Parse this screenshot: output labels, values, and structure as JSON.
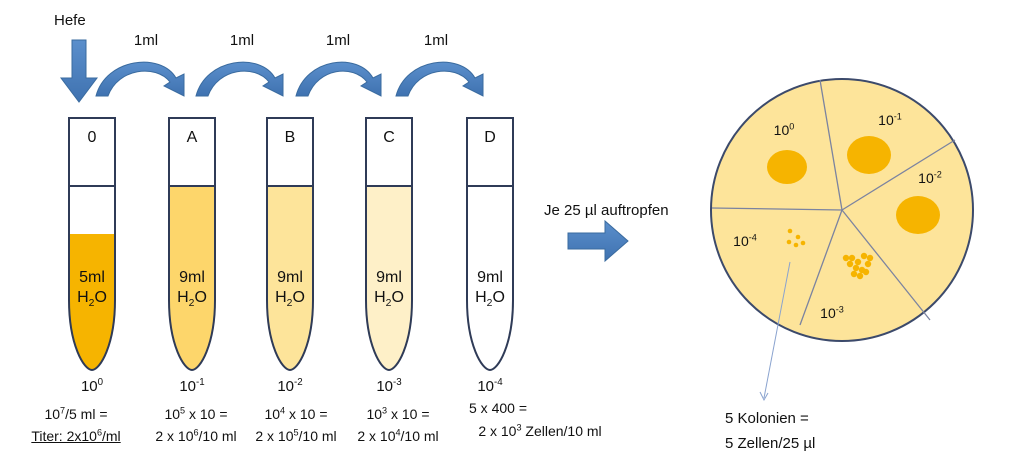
{
  "hefe_label": "Hefe",
  "transfer_volume": "1ml",
  "drop_text": "Je 25 µl auftropfen",
  "tubes": [
    {
      "letter": "0",
      "vol": "5ml",
      "solvent": "H",
      "solvent_sub": "2",
      "solvent_tail": "O",
      "dil_base": "10",
      "dil_exp": "0",
      "fill": "#f6b400",
      "calc1": [
        {
          "t": "10"
        },
        {
          "s": "7"
        },
        {
          "t": "/5 ml ="
        }
      ],
      "calc2": [
        {
          "t": "Titer: 2x10"
        },
        {
          "s": "6"
        },
        {
          "t": "/ml"
        }
      ],
      "calc2_underline": true
    },
    {
      "letter": "A",
      "vol": "9ml",
      "solvent": "H",
      "solvent_sub": "2",
      "solvent_tail": "O",
      "dil_base": "10",
      "dil_exp": "-1",
      "fill": "#fdd66b",
      "calc1": [
        {
          "t": "10"
        },
        {
          "s": "5"
        },
        {
          "t": " x 10 ="
        }
      ],
      "calc2": [
        {
          "t": "2 x 10"
        },
        {
          "s": "6"
        },
        {
          "t": "/10 ml"
        }
      ],
      "calc2_underline": false
    },
    {
      "letter": "B",
      "vol": "9ml",
      "solvent": "H",
      "solvent_sub": "2",
      "solvent_tail": "O",
      "dil_base": "10",
      "dil_exp": "-2",
      "fill": "#fde49a",
      "calc1": [
        {
          "t": "10"
        },
        {
          "s": "4"
        },
        {
          "t": " x 10 ="
        }
      ],
      "calc2": [
        {
          "t": "2 x 10"
        },
        {
          "s": "5"
        },
        {
          "t": "/10 ml"
        }
      ],
      "calc2_underline": false
    },
    {
      "letter": "C",
      "vol": "9ml",
      "solvent": "H",
      "solvent_sub": "2",
      "solvent_tail": "O",
      "dil_base": "10",
      "dil_exp": "-3",
      "fill": "#fef0c8",
      "calc1": [
        {
          "t": "10"
        },
        {
          "s": "3"
        },
        {
          "t": " x 10 ="
        }
      ],
      "calc2": [
        {
          "t": "2 x 10"
        },
        {
          "s": "4"
        },
        {
          "t": "/10 ml"
        }
      ],
      "calc2_underline": false
    },
    {
      "letter": "D",
      "vol": "9ml",
      "solvent": "H",
      "solvent_sub": "2",
      "solvent_tail": "O",
      "dil_base": "10",
      "dil_exp": "-4",
      "fill": "#ffffff",
      "calc1": [
        {
          "t": "5 x 400 ="
        }
      ],
      "calc2": [
        {
          "t": "2 x 10"
        },
        {
          "s": "3"
        },
        {
          "t": " Zellen/10 ml"
        }
      ],
      "calc2_underline": false
    }
  ],
  "plate_sectors": [
    {
      "base": "10",
      "exp": "0"
    },
    {
      "base": "10",
      "exp": "-1"
    },
    {
      "base": "10",
      "exp": "-2"
    },
    {
      "base": "10",
      "exp": "-3"
    },
    {
      "base": "10",
      "exp": "-4"
    }
  ],
  "result_line1": "5 Kolonien =",
  "result_line2": "5 Zellen/25 µl",
  "colors": {
    "arrow": "#4f81bd",
    "arrow_dark": "#3a6b9f",
    "plate": "#fde49a",
    "plate_stroke": "#3c4a6b",
    "colony": "#f6b400",
    "tube_stroke": "#2f3b57"
  }
}
